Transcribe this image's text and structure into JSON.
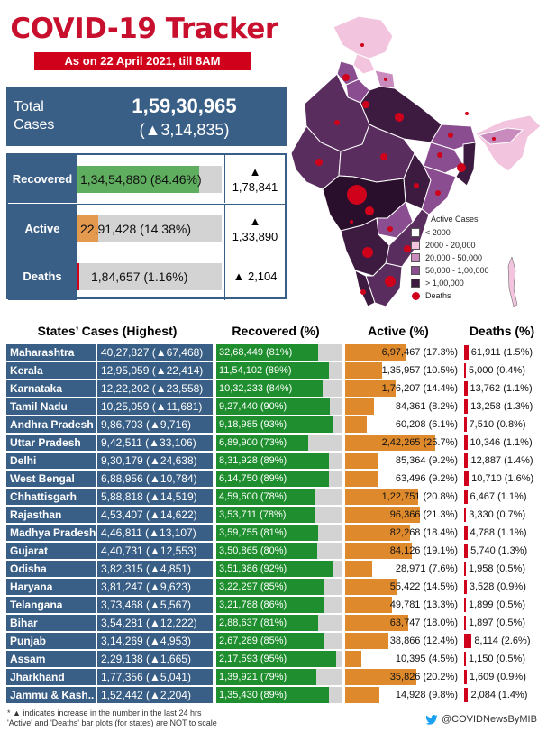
{
  "header": {
    "title": "COVID-19 Tracker",
    "subtitle": "As on 22 April 2021, till 8AM"
  },
  "total": {
    "label": "Total Cases",
    "value": "1,59,30,965",
    "delta": "(▲3,14,835)"
  },
  "summary": [
    {
      "label": "Recovered",
      "value": "1,34,54,880 (84.46%)",
      "percent": 84.46,
      "color": "#5fae5f",
      "delta_arrow": "▲",
      "delta": "1,78,841"
    },
    {
      "label": "Active",
      "value": "22,91,428 (14.38%)",
      "percent": 14.38,
      "color": "#e39a4f",
      "delta_arrow": "▲",
      "delta": "1,33,890"
    },
    {
      "label": "Deaths",
      "value": "1,84,657 (1.16%)",
      "percent": 1.16,
      "color": "#d0021b",
      "delta_arrow": "",
      "delta": "▲ 2,104"
    }
  ],
  "legend": {
    "title": "Active Cases",
    "items": [
      {
        "label": "< 2000",
        "color": "#ffffff"
      },
      {
        "label": "2000 - 20,000",
        "color": "#f2c4de"
      },
      {
        "label": "20,000 - 50,000",
        "color": "#c98bbd"
      },
      {
        "label": "50,000 - 1,00,000",
        "color": "#8a4d8f"
      },
      {
        "label": "> 1,00,000",
        "color": "#3d1a40"
      }
    ],
    "deaths_label": "Deaths"
  },
  "columns": {
    "states": "States’ Cases (Highest)",
    "recovered": "Recovered (%)",
    "active": "Active (%)",
    "deaths": "Deaths (%)"
  },
  "states": [
    {
      "name": "Maharashtra",
      "cases": "40,27,827 (▲67,468)",
      "rec": "32,68,449 (81%)",
      "rec_pct": 81,
      "act": "6,97,467 (17.3%)",
      "act_pct": 17.3,
      "death": "61,911 (1.5%)",
      "death_pct": 1.5
    },
    {
      "name": "Kerala",
      "cases": "12,95,059 (▲22,414)",
      "rec": "11,54,102 (89%)",
      "rec_pct": 89,
      "act": "1,35,957 (10.5%)",
      "act_pct": 10.5,
      "death": "5,000 (0.4%)",
      "death_pct": 0.4
    },
    {
      "name": "Karnataka",
      "cases": "12,22,202 (▲23,558)",
      "rec": "10,32,233 (84%)",
      "rec_pct": 84,
      "act": "1,76,207 (14.4%)",
      "act_pct": 14.4,
      "death": "13,762 (1.1%)",
      "death_pct": 1.1
    },
    {
      "name": "Tamil Nadu",
      "cases": "10,25,059 (▲11,681)",
      "rec": "9,27,440 (90%)",
      "rec_pct": 90,
      "act": "84,361 (8.2%)",
      "act_pct": 8.2,
      "death": "13,258 (1.3%)",
      "death_pct": 1.3
    },
    {
      "name": "Andhra Pradesh",
      "cases": "9,86,703 (▲9,716)",
      "rec": "9,18,985 (93%)",
      "rec_pct": 93,
      "act": "60,208 (6.1%)",
      "act_pct": 6.1,
      "death": "7,510 (0.8%)",
      "death_pct": 0.8
    },
    {
      "name": "Uttar Pradesh",
      "cases": "9,42,511 (▲33,106)",
      "rec": "6,89,900 (73%)",
      "rec_pct": 73,
      "act": "2,42,265 (25.7%)",
      "act_pct": 25.7,
      "death": "10,346 (1.1%)",
      "death_pct": 1.1
    },
    {
      "name": "Delhi",
      "cases": "9,30,179 (▲24,638)",
      "rec": "8,31,928 (89%)",
      "rec_pct": 89,
      "act": "85,364 (9.2%)",
      "act_pct": 9.2,
      "death": "12,887 (1.4%)",
      "death_pct": 1.4
    },
    {
      "name": "West Bengal",
      "cases": "6,88,956 (▲10,784)",
      "rec": "6,14,750 (89%)",
      "rec_pct": 89,
      "act": "63,496 (9.2%)",
      "act_pct": 9.2,
      "death": "10,710 (1.6%)",
      "death_pct": 1.6
    },
    {
      "name": "Chhattisgarh",
      "cases": "5,88,818 (▲14,519)",
      "rec": "4,59,600 (78%)",
      "rec_pct": 78,
      "act": "1,22,751 (20.8%)",
      "act_pct": 20.8,
      "death": "6,467 (1.1%)",
      "death_pct": 1.1
    },
    {
      "name": "Rajasthan",
      "cases": "4,53,407 (▲14,622)",
      "rec": "3,53,711 (78%)",
      "rec_pct": 78,
      "act": "96,366 (21.3%)",
      "act_pct": 21.3,
      "death": "3,330 (0.7%)",
      "death_pct": 0.7
    },
    {
      "name": "Madhya Pradesh",
      "cases": "4,46,811 (▲13,107)",
      "rec": "3,59,755 (81%)",
      "rec_pct": 81,
      "act": "82,268 (18.4%)",
      "act_pct": 18.4,
      "death": "4,788 (1.1%)",
      "death_pct": 1.1
    },
    {
      "name": "Gujarat",
      "cases": "4,40,731 (▲12,553)",
      "rec": "3,50,865 (80%)",
      "rec_pct": 80,
      "act": "84,126 (19.1%)",
      "act_pct": 19.1,
      "death": "5,740 (1.3%)",
      "death_pct": 1.3
    },
    {
      "name": "Odisha",
      "cases": "3,82,315 (▲4,851)",
      "rec": "3,51,386 (92%)",
      "rec_pct": 92,
      "act": "28,971 (7.6%)",
      "act_pct": 7.6,
      "death": "1,958 (0.5%)",
      "death_pct": 0.5
    },
    {
      "name": "Haryana",
      "cases": "3,81,247 (▲9,623)",
      "rec": "3,22,297 (85%)",
      "rec_pct": 85,
      "act": "55,422 (14.5%)",
      "act_pct": 14.5,
      "death": "3,528 (0.9%)",
      "death_pct": 0.9
    },
    {
      "name": "Telangana",
      "cases": "3,73,468 (▲5,567)",
      "rec": "3,21,788 (86%)",
      "rec_pct": 86,
      "act": "49,781 (13.3%)",
      "act_pct": 13.3,
      "death": "1,899 (0.5%)",
      "death_pct": 0.5
    },
    {
      "name": "Bihar",
      "cases": "3,54,281 (▲12,222)",
      "rec": "2,88,637 (81%)",
      "rec_pct": 81,
      "act": "63,747 (18.0%)",
      "act_pct": 18.0,
      "death": "1,897 (0.5%)",
      "death_pct": 0.5
    },
    {
      "name": "Punjab",
      "cases": "3,14,269 (▲4,953)",
      "rec": "2,67,289 (85%)",
      "rec_pct": 85,
      "act": "38,866 (12.4%)",
      "act_pct": 12.4,
      "death": "8,114 (2.6%)",
      "death_pct": 2.6
    },
    {
      "name": "Assam",
      "cases": "2,29,138 (▲1,665)",
      "rec": "2,17,593 (95%)",
      "rec_pct": 95,
      "act": "10,395 (4.5%)",
      "act_pct": 4.5,
      "death": "1,150 (0.5%)",
      "death_pct": 0.5
    },
    {
      "name": "Jharkhand",
      "cases": "1,77,356 (▲5,041)",
      "rec": "1,39,921 (79%)",
      "rec_pct": 79,
      "act": "35,826 (20.2%)",
      "act_pct": 20.2,
      "death": "1,609 (0.9%)",
      "death_pct": 0.9
    },
    {
      "name": "Jammu & Kash..",
      "cases": "1,52,442 (▲2,204)",
      "rec": "1,35,430 (89%)",
      "rec_pct": 89,
      "act": "14,928 (9.8%)",
      "act_pct": 9.8,
      "death": "2,084 (1.4%)",
      "death_pct": 1.4
    }
  ],
  "footnote": {
    "line1": "* ▲ indicates increase in the number in the last 24 hrs",
    "line2": "'Active' and 'Deaths' bar plots (for states) are NOT to scale"
  },
  "credit": {
    "handle": "@COVIDNewsByMIB",
    "icon": "twitter-icon"
  },
  "colors": {
    "brand_red": "#c8102e",
    "panel_blue": "#3a5f86",
    "recovered_green": "#1e8e2e",
    "active_orange": "#de8a2c",
    "deaths_red": "#d0021b"
  }
}
